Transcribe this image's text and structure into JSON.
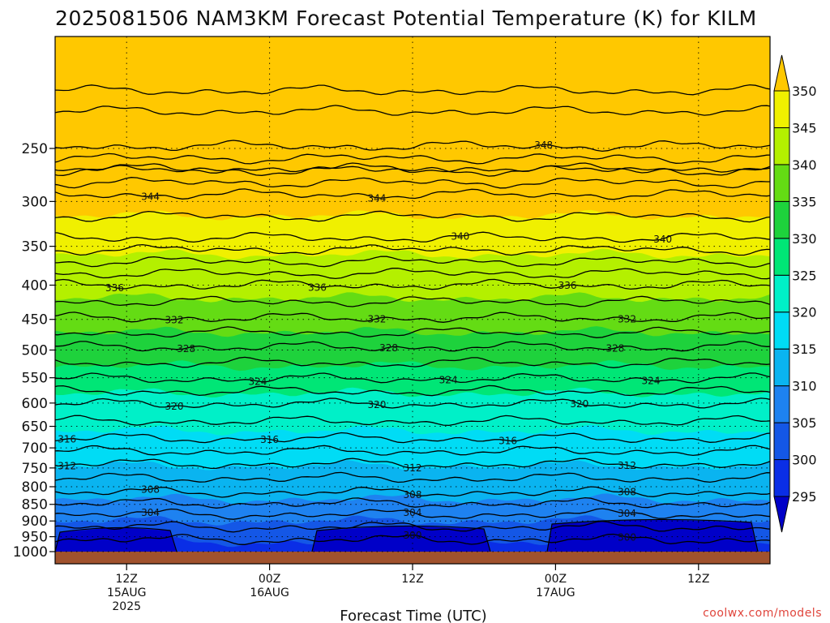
{
  "chart_data": {
    "type": "heatmap",
    "title": "2025081506 NAM3KM Forecast Potential Temperature (K) for KILM",
    "xlabel": "Forecast Time (UTC)",
    "ylabel": "",
    "credit": "coolwx.com/models",
    "y_scale": "log",
    "ylim": [
      1000,
      200
    ],
    "y_ticks": [
      250,
      300,
      350,
      400,
      450,
      500,
      550,
      600,
      650,
      700,
      750,
      800,
      850,
      900,
      950,
      1000
    ],
    "x_ticks": [
      {
        "line1": "12Z",
        "line2": "15AUG",
        "line3": "2025",
        "hour": 6
      },
      {
        "line1": "00Z",
        "line2": "16AUG",
        "line3": "",
        "hour": 18
      },
      {
        "line1": "12Z",
        "line2": "",
        "line3": "",
        "hour": 30
      },
      {
        "line1": "00Z",
        "line2": "17AUG",
        "line3": "",
        "hour": 42
      },
      {
        "line1": "12Z",
        "line2": "",
        "line3": "",
        "hour": 54
      }
    ],
    "x_range_hours": [
      0,
      60
    ],
    "colorbar": {
      "levels": [
        295,
        300,
        305,
        310,
        315,
        320,
        325,
        330,
        335,
        340,
        345,
        350
      ],
      "colors": [
        "#0000c8",
        "#0a2ee6",
        "#1457e6",
        "#1e82f0",
        "#0ab4f0",
        "#00dcf5",
        "#00f0c8",
        "#00e676",
        "#1ed23c",
        "#64dc14",
        "#b4f000",
        "#f0f000",
        "#ffc800"
      ]
    },
    "contours": [
      {
        "value": 300,
        "p": 960,
        "labels_at_hours": [
          30,
          48
        ]
      },
      {
        "value": 304,
        "p": 880,
        "labels_at_hours": [
          8,
          30,
          48
        ]
      },
      {
        "value": 308,
        "p": 816,
        "labels_at_hours": [
          8,
          30,
          48
        ]
      },
      {
        "value": 312,
        "p": 740,
        "labels_at_hours": [
          1,
          30,
          48
        ]
      },
      {
        "value": 316,
        "p": 678,
        "labels_at_hours": [
          1,
          18,
          38
        ]
      },
      {
        "value": 320,
        "p": 602,
        "labels_at_hours": [
          10,
          27,
          44
        ]
      },
      {
        "value": 324,
        "p": 552,
        "labels_at_hours": [
          17,
          33,
          50
        ]
      },
      {
        "value": 328,
        "p": 495,
        "labels_at_hours": [
          11,
          28,
          47
        ]
      },
      {
        "value": 332,
        "p": 448,
        "labels_at_hours": [
          10,
          27,
          48
        ]
      },
      {
        "value": 336,
        "p": 400,
        "labels_at_hours": [
          5,
          22,
          43
        ]
      },
      {
        "value": 340,
        "p": 340,
        "labels_at_hours": [
          34,
          51
        ]
      },
      {
        "value": 344,
        "p": 293,
        "labels_at_hours": [
          8,
          27
        ]
      },
      {
        "value": 348,
        "p": 248,
        "labels_at_hours": [
          41
        ]
      }
    ]
  }
}
